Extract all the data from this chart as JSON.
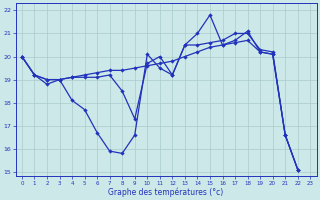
{
  "xlabel": "Graphe des températures (°c)",
  "background_color": "#cce8e8",
  "grid_color": "#aacccc",
  "line_color": "#2233bb",
  "xlim_min": -0.5,
  "xlim_max": 23.5,
  "ylim_min": 14.8,
  "ylim_max": 22.3,
  "yticks": [
    15,
    16,
    17,
    18,
    19,
    20,
    21,
    22
  ],
  "xticks": [
    0,
    1,
    2,
    3,
    4,
    5,
    6,
    7,
    8,
    9,
    10,
    11,
    12,
    13,
    14,
    15,
    16,
    17,
    18,
    19,
    20,
    21,
    22,
    23
  ],
  "series": [
    {
      "x": [
        0,
        1,
        2,
        3,
        4,
        5,
        6,
        7,
        8,
        9,
        10,
        11,
        12,
        13,
        14,
        15,
        16,
        17,
        18,
        19,
        20,
        21,
        22
      ],
      "y": [
        20.0,
        19.2,
        19.0,
        19.0,
        19.1,
        19.2,
        19.3,
        19.4,
        19.4,
        19.5,
        19.6,
        19.7,
        19.8,
        20.0,
        20.2,
        20.4,
        20.5,
        20.6,
        20.7,
        20.2,
        20.1,
        16.6,
        15.1
      ]
    },
    {
      "x": [
        0,
        1,
        2,
        3,
        4,
        5,
        6,
        7,
        8,
        9,
        10,
        11,
        12,
        13,
        14,
        15,
        16,
        17,
        18,
        19,
        20,
        21,
        22
      ],
      "y": [
        20.0,
        19.2,
        19.0,
        19.0,
        19.1,
        19.1,
        19.1,
        19.2,
        18.5,
        17.3,
        19.7,
        20.0,
        19.2,
        20.5,
        20.5,
        20.6,
        20.7,
        21.0,
        21.0,
        20.3,
        20.2,
        16.6,
        15.1
      ]
    },
    {
      "x": [
        0,
        1,
        2,
        3,
        4,
        5,
        6,
        7,
        8,
        9,
        10,
        11,
        12,
        13,
        14,
        15,
        16,
        17,
        18,
        19,
        20,
        21,
        22
      ],
      "y": [
        20.0,
        19.2,
        18.8,
        19.0,
        18.1,
        17.7,
        16.7,
        15.9,
        15.8,
        16.6,
        20.1,
        19.5,
        19.2,
        20.5,
        21.0,
        21.8,
        20.5,
        20.7,
        21.1,
        20.2,
        20.1,
        16.6,
        15.1
      ]
    }
  ]
}
